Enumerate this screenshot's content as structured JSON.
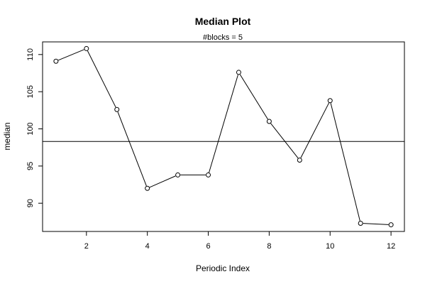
{
  "chart_data": {
    "type": "line",
    "title": "Median Plot",
    "subtitle": "#blocks =  5",
    "xlabel": "Periodic Index",
    "ylabel": "median",
    "x": [
      1,
      2,
      3,
      4,
      5,
      6,
      7,
      8,
      9,
      10,
      11,
      12
    ],
    "series": [
      {
        "values": [
          109.1,
          110.8,
          102.6,
          92.0,
          93.8,
          93.8,
          107.6,
          101.0,
          95.8,
          103.8,
          87.3,
          87.1
        ]
      }
    ],
    "reference_line": {
      "y": 98.3
    },
    "xlim": [
      0.56,
      12.44
    ],
    "ylim": [
      86.2,
      111.7
    ],
    "xticks": [
      2,
      4,
      6,
      8,
      10,
      12
    ],
    "yticks": [
      90,
      95,
      100,
      105,
      110
    ],
    "grid": false,
    "markers": "open-circle",
    "line_color": "#000000"
  }
}
